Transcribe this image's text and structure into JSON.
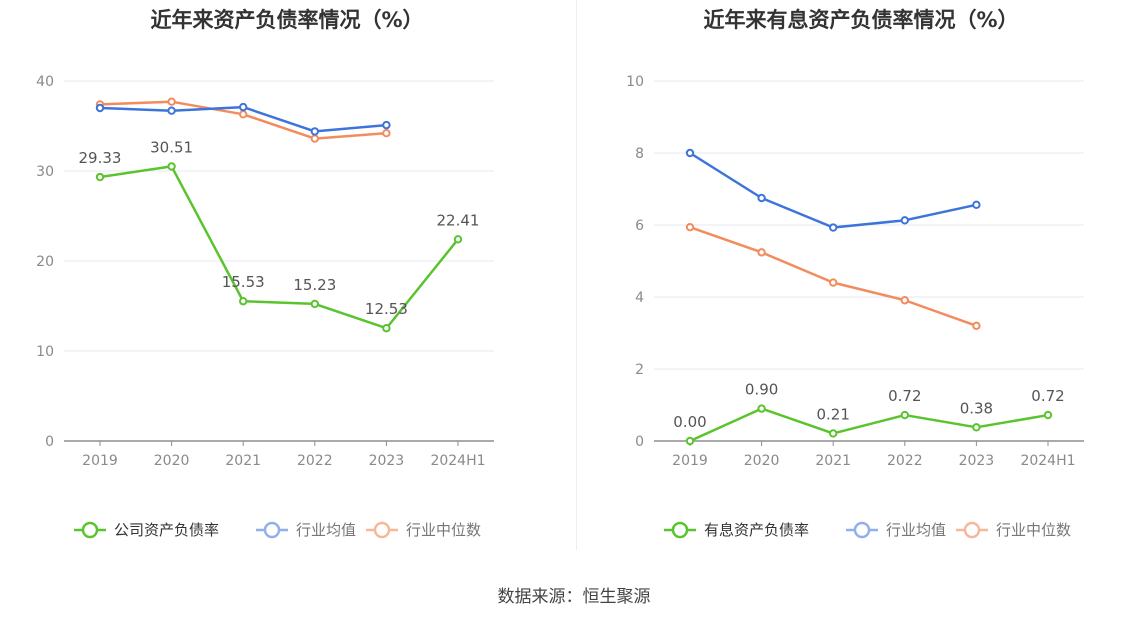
{
  "source_label": "数据来源：恒生聚源",
  "colors": {
    "company": "#5ac42e",
    "avg": "#3d74db",
    "median": "#f28c5e",
    "grid": "#e6e9f0",
    "axis": "#8e8e8e",
    "tick_text": "#8a8a8a",
    "label_text": "#555555"
  },
  "chart_data": [
    {
      "type": "line",
      "title": "近年来资产负债率情况（%）",
      "categories": [
        "2019",
        "2020",
        "2021",
        "2022",
        "2023",
        "2024H1"
      ],
      "ylim": [
        0,
        40
      ],
      "yticks": [
        0,
        10,
        20,
        30,
        40
      ],
      "grid": true,
      "legend_position": "bottom",
      "series": [
        {
          "name": "公司资产负债率",
          "color": "#5ac42e",
          "values": [
            29.33,
            30.51,
            15.53,
            15.23,
            12.53,
            22.41
          ],
          "labels": [
            "29.33",
            "30.51",
            "15.53",
            "15.23",
            "12.53",
            "22.41"
          ]
        },
        {
          "name": "行业均值",
          "color": "#3d74db",
          "values": [
            37.0,
            36.7,
            37.1,
            34.4,
            35.1,
            null
          ]
        },
        {
          "name": "行业中位数",
          "color": "#f28c5e",
          "values": [
            37.4,
            37.7,
            36.3,
            33.6,
            34.2,
            null
          ]
        }
      ]
    },
    {
      "type": "line",
      "title": "近年来有息资产负债率情况（%）",
      "categories": [
        "2019",
        "2020",
        "2021",
        "2022",
        "2023",
        "2024H1"
      ],
      "ylim": [
        0,
        10
      ],
      "yticks": [
        0,
        2,
        4,
        6,
        8,
        10
      ],
      "grid": true,
      "legend_position": "bottom",
      "series": [
        {
          "name": "有息资产负债率",
          "color": "#5ac42e",
          "values": [
            0.0,
            0.9,
            0.21,
            0.72,
            0.38,
            0.72
          ],
          "labels": [
            "0.00",
            "0.90",
            "0.21",
            "0.72",
            "0.38",
            "0.72"
          ]
        },
        {
          "name": "行业均值",
          "color": "#3d74db",
          "values": [
            8.0,
            6.75,
            5.93,
            6.13,
            6.56,
            null
          ]
        },
        {
          "name": "行业中位数",
          "color": "#f28c5e",
          "values": [
            5.94,
            5.24,
            4.4,
            3.91,
            3.2,
            null
          ]
        }
      ]
    }
  ]
}
